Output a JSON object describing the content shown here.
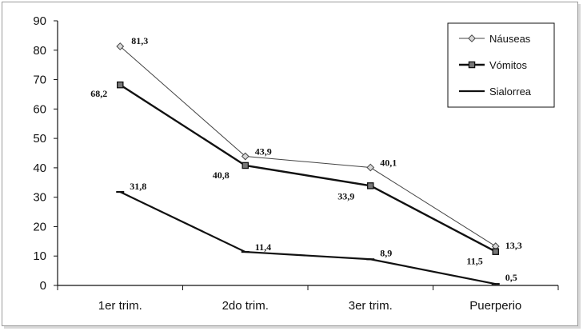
{
  "chart_data": {
    "type": "line",
    "title": "",
    "xlabel": "",
    "ylabel": "",
    "categories": [
      "1er trim.",
      "2do trim.",
      "3er trim.",
      "Puerperio"
    ],
    "ylim": [
      0,
      90
    ],
    "yticks": [
      0,
      10,
      20,
      30,
      40,
      50,
      60,
      70,
      80,
      90
    ],
    "grid": false,
    "legend_position": "top-right",
    "series": [
      {
        "name": "Náuseas",
        "values": [
          81.3,
          43.9,
          40.1,
          13.3
        ],
        "labels": [
          "81,3",
          "43,9",
          "40,1",
          "13,3"
        ],
        "marker": "diamond",
        "color": "#444444"
      },
      {
        "name": "Vómitos",
        "values": [
          68.2,
          40.8,
          33.9,
          11.5
        ],
        "labels": [
          "68,2",
          "40,8",
          "33,9",
          "11,5"
        ],
        "marker": "square",
        "color": "#111111"
      },
      {
        "name": "Sialorrea",
        "values": [
          31.8,
          11.4,
          8.9,
          0.5
        ],
        "labels": [
          "31,8",
          "11,4",
          "8,9",
          "0,5"
        ],
        "marker": "dash",
        "color": "#111111"
      }
    ]
  }
}
